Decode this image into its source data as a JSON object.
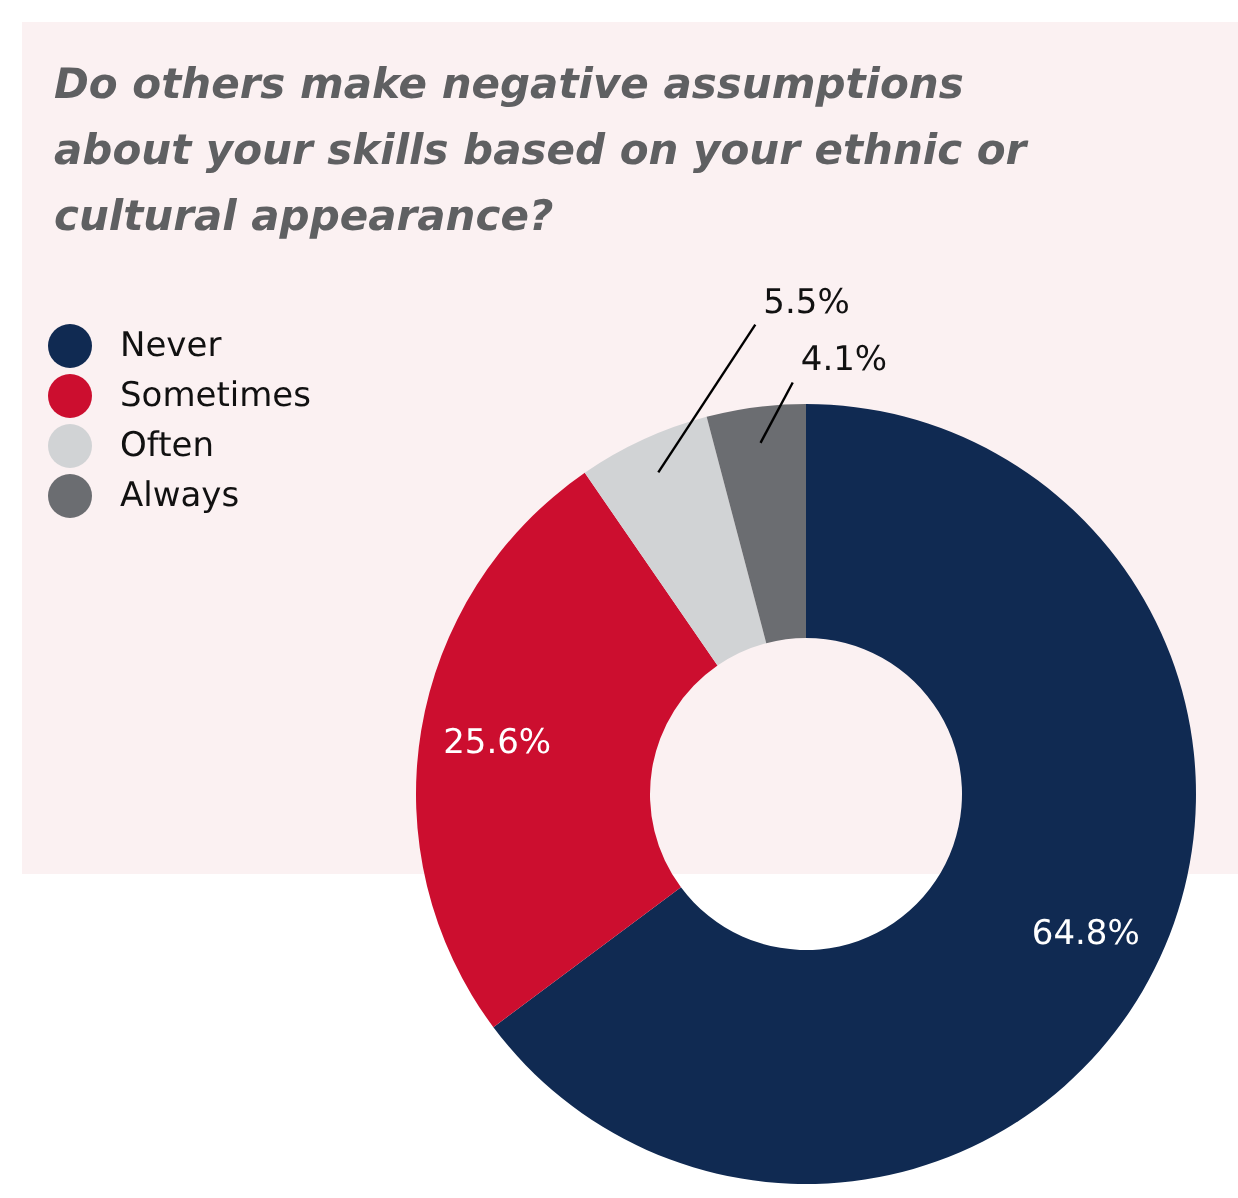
{
  "chart_data": {
    "type": "donut",
    "title": "Do others make negative assumptions about your skills based on your ethnic or cultural appearance?",
    "categories": [
      "Never",
      "Sometimes",
      "Often",
      "Always"
    ],
    "values": [
      64.8,
      25.6,
      5.5,
      4.1
    ],
    "colors": [
      "#102a52",
      "#cc0e2f",
      "#d1d3d5",
      "#6b6d71"
    ],
    "value_labels": [
      "64.8%",
      "25.6%",
      "5.5%",
      "4.1%"
    ],
    "legend": "top left"
  }
}
